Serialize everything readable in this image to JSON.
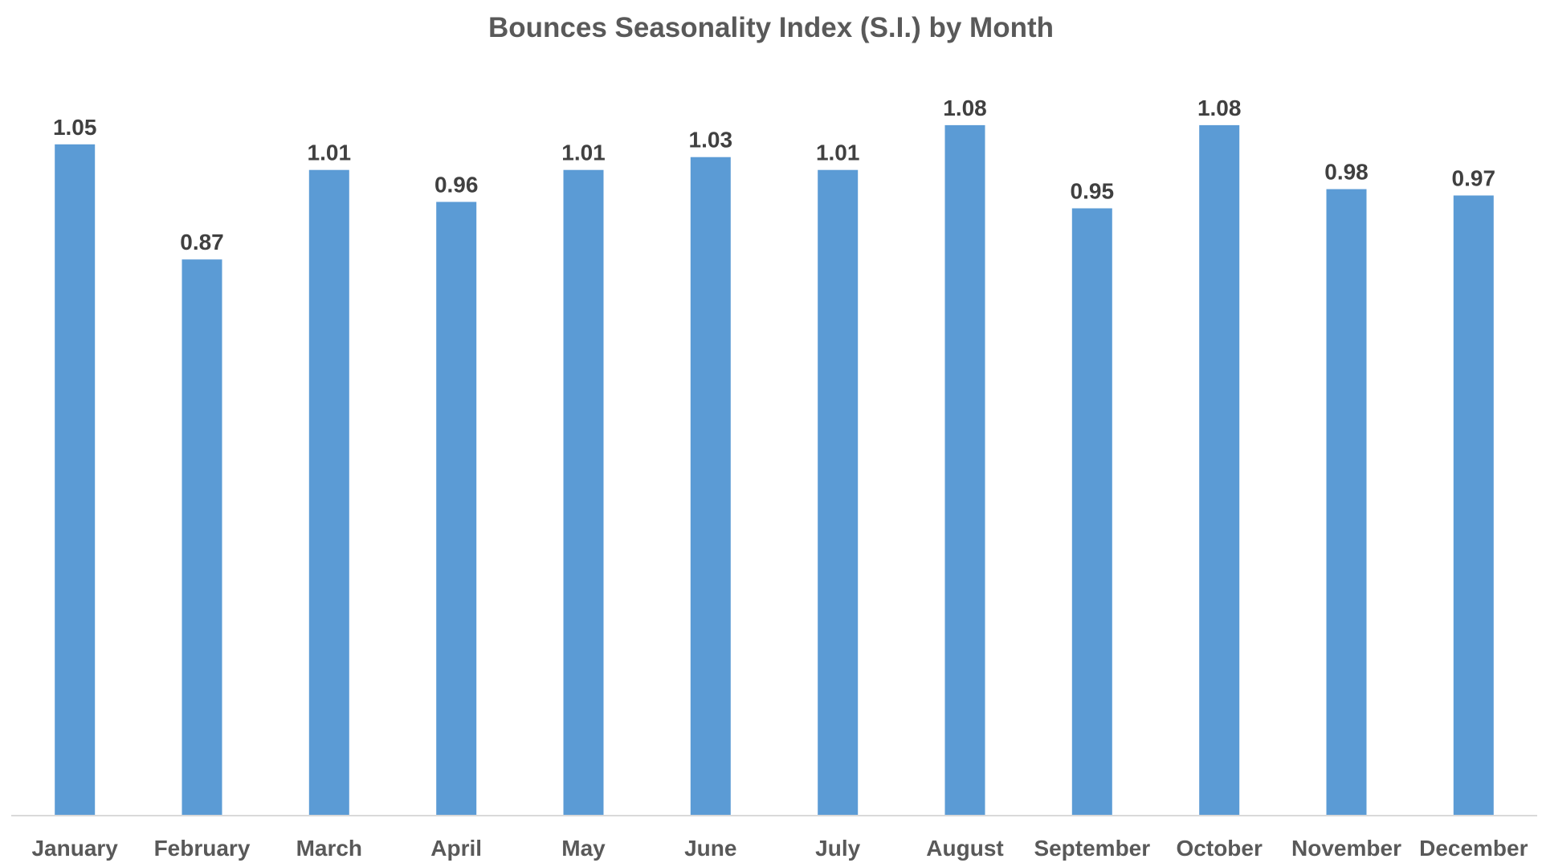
{
  "chart_data": {
    "type": "bar",
    "title": "Bounces Seasonality Index (S.I.) by Month",
    "xlabel": "",
    "ylabel": "",
    "categories": [
      "January",
      "February",
      "March",
      "April",
      "May",
      "June",
      "July",
      "August",
      "September",
      "October",
      "November",
      "December"
    ],
    "series": [
      {
        "values": [
          1.05,
          0.87,
          1.01,
          0.96,
          1.01,
          1.03,
          1.01,
          1.08,
          0.95,
          1.08,
          0.98,
          0.97
        ]
      }
    ],
    "value_labels": [
      "1.05",
      "0.87",
      "1.01",
      "0.96",
      "1.01",
      "1.03",
      "1.01",
      "1.08",
      "0.95",
      "1.08",
      "0.98",
      "0.97"
    ],
    "ylim": [
      0,
      1.1
    ],
    "grid": false,
    "legend": "none",
    "colors": {
      "bar": "#5B9BD5",
      "axis": "#D9D9D9",
      "title": "#595959",
      "labels": "#404040"
    }
  }
}
